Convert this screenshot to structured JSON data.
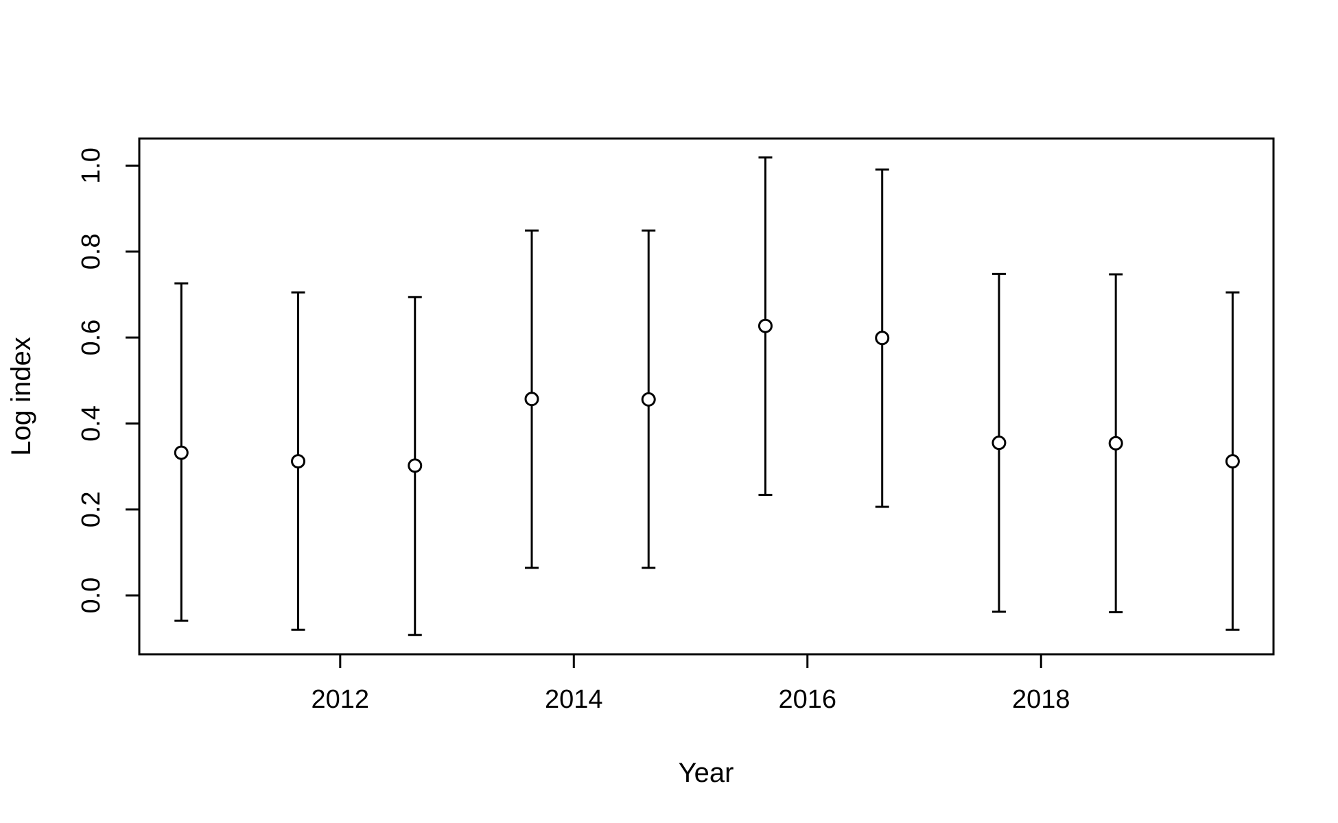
{
  "chart_data": {
    "type": "scatter",
    "title": "",
    "xlabel": "Year",
    "ylabel": "Log index",
    "xlim": [
      2010.28,
      2019.99
    ],
    "ylim": [
      -0.137,
      1.063
    ],
    "x_ticks": [
      2012,
      2014,
      2016,
      2018
    ],
    "x_tick_labels": [
      "2012",
      "2014",
      "2016",
      "2018"
    ],
    "y_ticks": [
      0.0,
      0.2,
      0.4,
      0.6,
      0.8,
      1.0
    ],
    "y_tick_labels": [
      "0.0",
      "0.2",
      "0.4",
      "0.6",
      "0.8",
      "1.0"
    ],
    "grid": false,
    "legend": "none",
    "marker": "open-circle",
    "series": [
      {
        "points": [
          {
            "x": 2010.64,
            "y": 0.332,
            "lower": -0.059,
            "upper": 0.726
          },
          {
            "x": 2011.64,
            "y": 0.312,
            "lower": -0.08,
            "upper": 0.705
          },
          {
            "x": 2012.64,
            "y": 0.302,
            "lower": -0.092,
            "upper": 0.694
          },
          {
            "x": 2013.64,
            "y": 0.457,
            "lower": 0.064,
            "upper": 0.849
          },
          {
            "x": 2014.64,
            "y": 0.456,
            "lower": 0.064,
            "upper": 0.849
          },
          {
            "x": 2015.64,
            "y": 0.627,
            "lower": 0.234,
            "upper": 1.019
          },
          {
            "x": 2016.64,
            "y": 0.599,
            "lower": 0.206,
            "upper": 0.991
          },
          {
            "x": 2017.64,
            "y": 0.355,
            "lower": -0.038,
            "upper": 0.748
          },
          {
            "x": 2018.64,
            "y": 0.354,
            "lower": -0.039,
            "upper": 0.747
          },
          {
            "x": 2019.64,
            "y": 0.312,
            "lower": -0.08,
            "upper": 0.705
          }
        ]
      }
    ],
    "colors": {
      "line": "#000000",
      "marker_fill": "#ffffff",
      "background": "#ffffff"
    }
  }
}
